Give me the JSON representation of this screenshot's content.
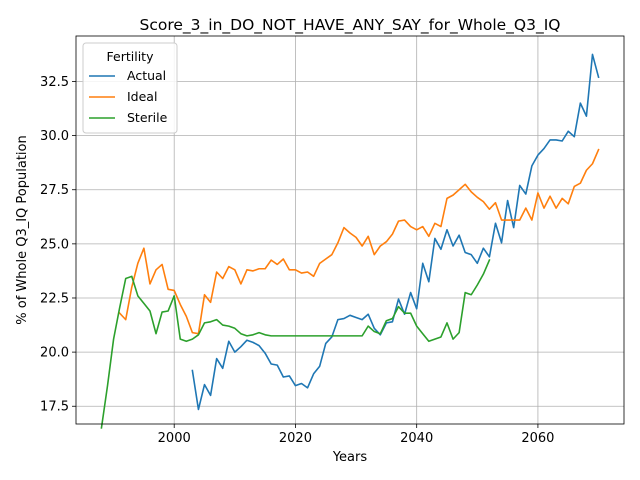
{
  "chart_data": {
    "type": "line",
    "title": "Score_3_in_DO_NOT_HAVE_ANY_SAY_for_Whole_Q3_IQ",
    "xlabel": "Years",
    "ylabel": "% of Whole Q3_IQ Population",
    "xlim": [
      1983.8,
      2074.2
    ],
    "ylim": [
      16.68,
      34.6
    ],
    "xticks": [
      2000,
      2020,
      2040,
      2060
    ],
    "yticks": [
      17.5,
      20.0,
      22.5,
      25.0,
      27.5,
      30.0,
      32.5
    ],
    "xtick_labels": [
      "2000",
      "2020",
      "2040",
      "2060"
    ],
    "ytick_labels": [
      "17.5",
      "20.0",
      "22.5",
      "25.0",
      "27.5",
      "30.0",
      "32.5"
    ],
    "grid": true,
    "legend": {
      "title": "Fertility",
      "placement": "upper-left"
    },
    "series": [
      {
        "name": "Actual",
        "color": "#1f77b4",
        "x": [
          2003,
          2004,
          2005,
          2006,
          2007,
          2008,
          2009,
          2010,
          2011,
          2012,
          2013,
          2014,
          2015,
          2016,
          2017,
          2018,
          2019,
          2020,
          2021,
          2022,
          2023,
          2024,
          2025,
          2026,
          2027,
          2028,
          2029,
          2030,
          2031,
          2032,
          2033,
          2034,
          2035,
          2036,
          2037,
          2038,
          2039,
          2040,
          2041,
          2042,
          2043,
          2044,
          2045,
          2046,
          2047,
          2048,
          2049,
          2050,
          2051,
          2052,
          2053,
          2054,
          2055,
          2056,
          2057,
          2058,
          2059,
          2060,
          2061,
          2062,
          2063,
          2064,
          2065,
          2066,
          2067,
          2068,
          2069,
          2070
        ],
        "values": [
          19.15,
          17.35,
          18.5,
          18.0,
          19.7,
          19.25,
          20.5,
          20.0,
          20.25,
          20.55,
          20.45,
          20.3,
          19.95,
          19.45,
          19.4,
          18.85,
          18.9,
          18.45,
          18.55,
          18.35,
          19.0,
          19.35,
          20.4,
          20.7,
          21.5,
          21.55,
          21.7,
          21.6,
          21.5,
          21.75,
          21.1,
          20.8,
          21.35,
          21.4,
          22.45,
          21.75,
          22.75,
          22.0,
          24.1,
          23.25,
          25.25,
          24.75,
          25.65,
          24.9,
          25.4,
          24.6,
          24.5,
          24.1,
          24.8,
          24.4,
          25.95,
          25.05,
          27.0,
          25.75,
          27.7,
          27.3,
          28.6,
          29.1,
          29.4,
          29.8,
          29.8,
          29.75,
          30.2,
          29.95,
          31.5,
          30.9,
          33.75,
          32.7
        ]
      },
      {
        "name": "Ideal",
        "color": "#ff7f0e",
        "x": [
          1991,
          1992,
          1993,
          1994,
          1995,
          1996,
          1997,
          1998,
          1999,
          2000,
          2001,
          2002,
          2003,
          2004,
          2005,
          2006,
          2007,
          2008,
          2009,
          2010,
          2011,
          2012,
          2013,
          2014,
          2015,
          2016,
          2017,
          2018,
          2019,
          2020,
          2021,
          2022,
          2023,
          2024,
          2025,
          2026,
          2027,
          2028,
          2029,
          2030,
          2031,
          2032,
          2033,
          2034,
          2035,
          2036,
          2037,
          2038,
          2039,
          2040,
          2041,
          2042,
          2043,
          2044,
          2045,
          2046,
          2047,
          2048,
          2049,
          2050,
          2051,
          2052,
          2053,
          2054,
          2055,
          2056,
          2057,
          2058,
          2059,
          2060,
          2061,
          2062,
          2063,
          2064,
          2065,
          2066,
          2067,
          2068,
          2069,
          2070
        ],
        "values": [
          21.8,
          21.5,
          23.0,
          24.1,
          24.8,
          23.15,
          23.8,
          24.05,
          22.9,
          22.85,
          22.2,
          21.65,
          20.9,
          20.85,
          22.65,
          22.3,
          23.7,
          23.4,
          23.95,
          23.8,
          23.15,
          23.8,
          23.75,
          23.85,
          23.85,
          24.25,
          24.05,
          24.3,
          23.8,
          23.8,
          23.65,
          23.7,
          23.5,
          24.1,
          24.3,
          24.5,
          25.05,
          25.75,
          25.5,
          25.3,
          24.9,
          25.35,
          24.5,
          24.9,
          25.1,
          25.45,
          26.05,
          26.1,
          25.8,
          25.65,
          25.8,
          25.35,
          25.95,
          25.8,
          27.1,
          27.25,
          27.5,
          27.75,
          27.4,
          27.15,
          26.95,
          26.6,
          26.9,
          26.1,
          26.1,
          26.1,
          26.1,
          26.65,
          26.1,
          27.35,
          26.65,
          27.2,
          26.65,
          27.1,
          26.85,
          27.65,
          27.8,
          28.4,
          28.7,
          29.35
        ]
      },
      {
        "name": "Sterile",
        "color": "#2ca02c",
        "x": [
          1988,
          1989,
          1990,
          1991,
          1992,
          1993,
          1994,
          1995,
          1996,
          1997,
          1998,
          1999,
          2000,
          2001,
          2002,
          2003,
          2004,
          2005,
          2006,
          2007,
          2008,
          2009,
          2010,
          2011,
          2012,
          2013,
          2014,
          2015,
          2016,
          2017,
          2018,
          2019,
          2020,
          2021,
          2022,
          2023,
          2024,
          2025,
          2026,
          2027,
          2028,
          2029,
          2030,
          2031,
          2032,
          2033,
          2034,
          2035,
          2036,
          2037,
          2038,
          2039,
          2040,
          2041,
          2042,
          2043,
          2044,
          2045,
          2046,
          2047,
          2048,
          2049,
          2050,
          2051,
          2052
        ],
        "values": [
          16.5,
          18.45,
          20.6,
          22.05,
          23.4,
          23.5,
          22.6,
          22.25,
          21.9,
          20.85,
          21.85,
          21.9,
          22.6,
          20.6,
          20.5,
          20.6,
          20.8,
          21.35,
          21.4,
          21.5,
          21.25,
          21.2,
          21.1,
          20.85,
          20.75,
          20.8,
          20.9,
          20.8,
          20.75,
          20.75,
          20.75,
          20.75,
          20.75,
          20.75,
          20.75,
          20.75,
          20.75,
          20.75,
          20.75,
          20.75,
          20.75,
          20.75,
          20.75,
          20.75,
          21.2,
          20.95,
          20.85,
          21.45,
          21.55,
          22.1,
          21.8,
          21.8,
          21.2,
          20.85,
          20.5,
          20.6,
          20.7,
          21.35,
          20.6,
          20.9,
          22.75,
          22.65,
          23.1,
          23.6,
          24.25
        ]
      }
    ]
  }
}
